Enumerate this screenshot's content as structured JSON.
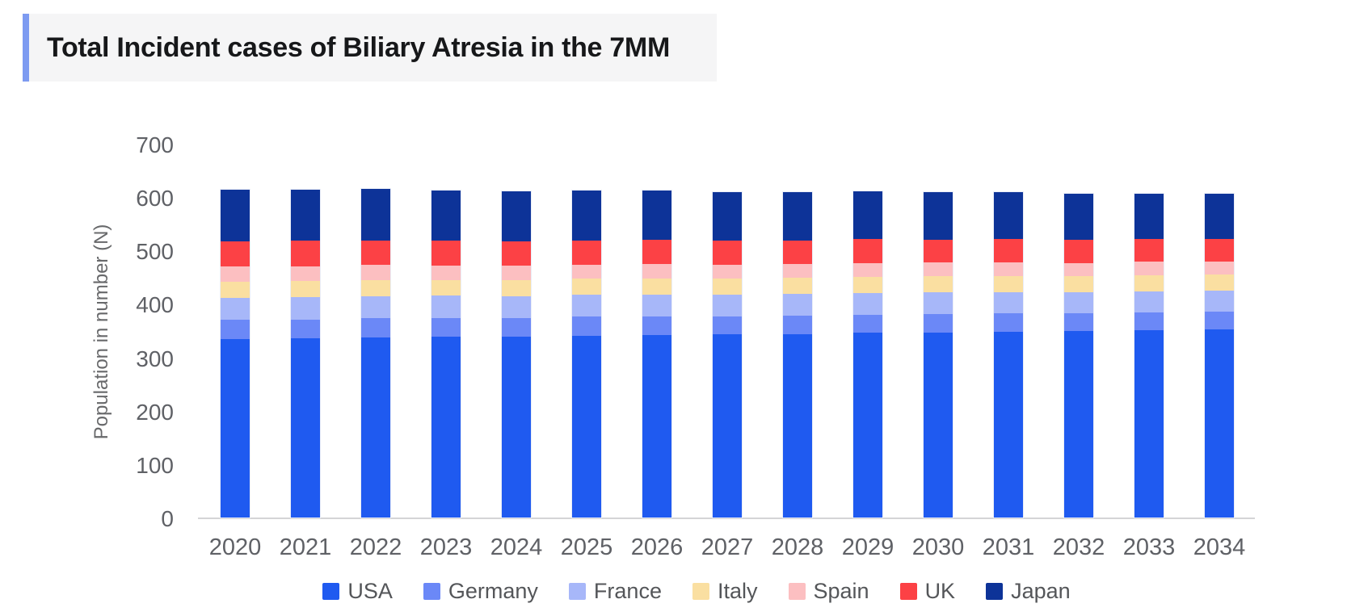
{
  "header": {
    "title": "Total Incident cases of Biliary Atresia in the 7MM"
  },
  "colors": {
    "title_accent": "#7d9bf1",
    "title_background": "#f5f5f6",
    "axis_line": "#d4d4d6",
    "axis_text": "#5f6166",
    "legend_text": "#545659"
  },
  "chart_data": {
    "type": "bar",
    "stacked": true,
    "title": "Total Incident cases of Biliary Atresia in the 7MM",
    "xlabel": "",
    "ylabel": "Population in number (N)",
    "ylim": [
      0,
      700
    ],
    "y_ticks": [
      0,
      100,
      200,
      300,
      400,
      500,
      600,
      700
    ],
    "grid": false,
    "legend_position": "bottom",
    "categories": [
      "2020",
      "2021",
      "2022",
      "2023",
      "2024",
      "2025",
      "2026",
      "2027",
      "2028",
      "2029",
      "2030",
      "2031",
      "2032",
      "2033",
      "2034"
    ],
    "series": [
      {
        "name": "USA",
        "color": "#1f5af0",
        "values": [
          334,
          335,
          337,
          338,
          339,
          341,
          342,
          343,
          344,
          346,
          347,
          348,
          349,
          351,
          352
        ]
      },
      {
        "name": "Germany",
        "color": "#6b88f7",
        "values": [
          36,
          36,
          36,
          35,
          35,
          35,
          35,
          34,
          34,
          34,
          34,
          34,
          33,
          33,
          33
        ]
      },
      {
        "name": "France",
        "color": "#a7b7f9",
        "values": [
          42,
          42,
          42,
          42,
          41,
          41,
          41,
          41,
          41,
          41,
          41,
          40,
          40,
          40,
          40
        ]
      },
      {
        "name": "Italy",
        "color": "#fadfa1",
        "values": [
          30,
          30,
          30,
          30,
          30,
          30,
          30,
          30,
          30,
          30,
          30,
          30,
          30,
          30,
          30
        ]
      },
      {
        "name": "Spain",
        "color": "#fcbfc1",
        "values": [
          28,
          28,
          28,
          27,
          27,
          27,
          27,
          26,
          26,
          26,
          26,
          26,
          25,
          25,
          25
        ]
      },
      {
        "name": "UK",
        "color": "#fc4145",
        "values": [
          47,
          47,
          46,
          46,
          45,
          45,
          45,
          44,
          44,
          44,
          43,
          43,
          43,
          42,
          42
        ]
      },
      {
        "name": "Japan",
        "color": "#0d3398",
        "values": [
          97,
          96,
          96,
          95,
          94,
          93,
          92,
          92,
          91,
          90,
          89,
          88,
          87,
          86,
          85
        ]
      }
    ]
  }
}
